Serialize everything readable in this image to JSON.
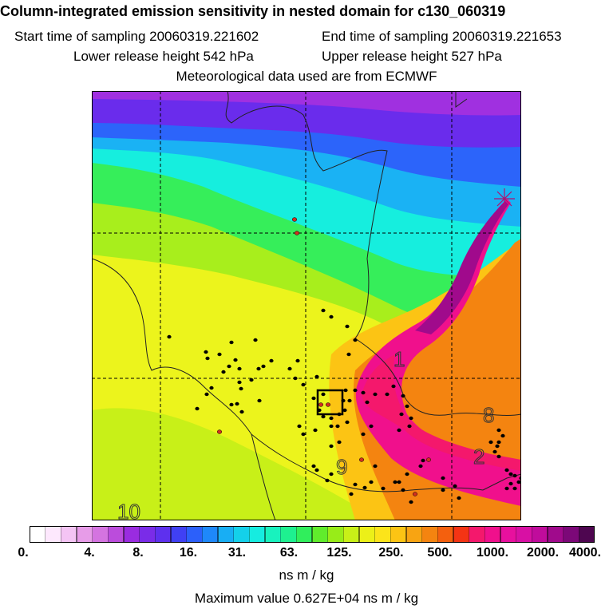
{
  "header": {
    "title": "Column-integrated emission sensitivity in nested domain for c130_060319",
    "start_label": "Start time of sampling 20060319.221602",
    "end_label": "End time of sampling 20060319.221653",
    "lower_label": "Lower release height  542 hPa",
    "upper_label": "Upper release height  527 hPa",
    "met_label": "Meteorological data used are from ECMWF"
  },
  "map": {
    "contour_labels": [
      "1",
      "8",
      "2",
      "9",
      "10"
    ],
    "dot_color_black": "#000000",
    "dot_color_red": "#d03020"
  },
  "colorbar": {
    "colors": [
      "#ffffff",
      "#fde8fd",
      "#f4c4f4",
      "#e79ce8",
      "#d474e0",
      "#bb4cdc",
      "#9a2ce0",
      "#7a2ce8",
      "#5e30ee",
      "#4040f4",
      "#2c60fa",
      "#1e88fa",
      "#18aef4",
      "#14d0ea",
      "#16ece0",
      "#18f2be",
      "#1ef090",
      "#30ee5c",
      "#60ec2c",
      "#98ec18",
      "#c8f018",
      "#ecf018",
      "#fce41a",
      "#fcc414",
      "#f8a412",
      "#f48410",
      "#f4600e",
      "#f43414",
      "#f4186c",
      "#f0108c",
      "#e8109e",
      "#d810a4",
      "#c00c9c",
      "#a00a8c",
      "#7c0878",
      "#4e0650"
    ],
    "ticks": [
      "0.",
      "4.",
      "8.",
      "16.",
      "31.",
      "63.",
      "125.",
      "250.",
      "500.",
      "1000.",
      "2000.",
      "4000."
    ],
    "units": "ns m / kg"
  },
  "footer": {
    "max_value": "Maximum value  0.627E+04 ns m / kg"
  }
}
